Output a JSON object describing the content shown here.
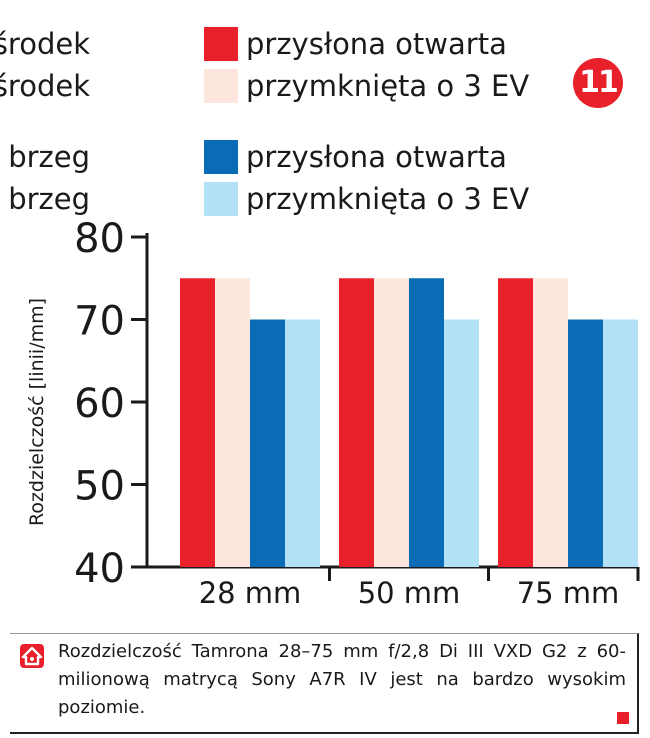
{
  "badge": "11",
  "legend": [
    {
      "position": "środek",
      "label": "przysłona otwarta",
      "color": "#e8202a"
    },
    {
      "position": "środek",
      "label": "przymknięta o 3 EV",
      "color": "#fde6de"
    },
    {
      "position": "brzeg",
      "label": "przysłona otwarta",
      "color": "#0a6cb5"
    },
    {
      "position": "brzeg",
      "label": "przymknięta o 3 EV",
      "color": "#b3e1f8"
    }
  ],
  "chart_data": {
    "type": "bar",
    "categories": [
      "28 mm",
      "50 mm",
      "75 mm"
    ],
    "series": [
      {
        "name": "środek przysłona otwarta",
        "color": "#e8202a",
        "values": [
          75,
          75,
          75
        ]
      },
      {
        "name": "środek przymknięta o 3 EV",
        "color": "#fde6de",
        "values": [
          75,
          75,
          75
        ]
      },
      {
        "name": "brzeg przysłona otwarta",
        "color": "#0a6cb5",
        "values": [
          70,
          75,
          70
        ]
      },
      {
        "name": "brzeg przymknięta o 3 EV",
        "color": "#b3e1f8",
        "values": [
          70,
          70,
          70
        ]
      }
    ],
    "ylabel": "Rozdzielczość  [linii/mm]",
    "ylim": [
      40,
      80
    ],
    "yticks": [
      40,
      50,
      60,
      70,
      80
    ],
    "grid": false,
    "legend_placement": "top"
  },
  "caption": {
    "text": "Rozdzielczość Tamrona 28–75 mm f/2,8 Di III VXD G2 z 60-milionową matrycą Sony A7R IV jest na bardzo wysokim poziomie."
  }
}
